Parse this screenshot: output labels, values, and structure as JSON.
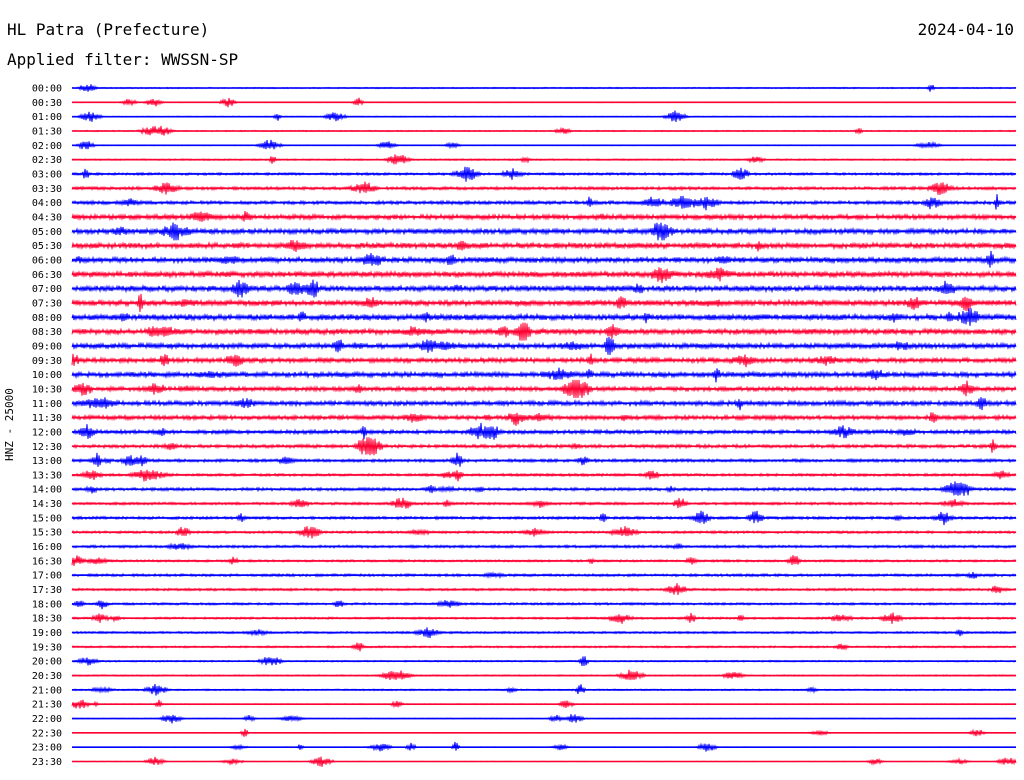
{
  "header": {
    "station": "HL Patra (Prefecture)",
    "date": "2024-04-10",
    "filter": "Applied filter: WWSSN-SP"
  },
  "chart_data": {
    "type": "line",
    "title": "HL Patra (Prefecture)",
    "ylabel": "HNZ - 25000",
    "xlabel": "",
    "colors": {
      "odd_rows": "#0000ff",
      "even_rows": "#ff0033"
    },
    "row_labels": [
      "00:00",
      "00:30",
      "01:00",
      "01:30",
      "02:00",
      "02:30",
      "03:00",
      "03:30",
      "04:00",
      "04:30",
      "05:00",
      "05:30",
      "06:00",
      "06:30",
      "07:00",
      "07:30",
      "08:00",
      "08:30",
      "09:00",
      "09:30",
      "10:00",
      "10:30",
      "11:00",
      "11:30",
      "12:00",
      "12:30",
      "13:00",
      "13:30",
      "14:00",
      "14:30",
      "15:00",
      "15:30",
      "16:00",
      "16:30",
      "17:00",
      "17:30",
      "18:00",
      "18:30",
      "19:00",
      "19:30",
      "20:00",
      "20:30",
      "21:00",
      "21:30",
      "22:00",
      "22:30",
      "23:00",
      "23:30"
    ],
    "relative_activity": [
      0.15,
      0.08,
      0.12,
      0.15,
      0.1,
      0.18,
      0.28,
      0.35,
      0.4,
      0.55,
      0.6,
      0.65,
      0.65,
      0.65,
      0.7,
      0.65,
      0.7,
      0.65,
      0.6,
      0.55,
      0.6,
      0.5,
      0.55,
      0.5,
      0.45,
      0.4,
      0.35,
      0.3,
      0.35,
      0.3,
      0.32,
      0.28,
      0.3,
      0.25,
      0.3,
      0.28,
      0.26,
      0.24,
      0.24,
      0.22,
      0.18,
      0.16,
      0.18,
      0.12,
      0.1,
      0.08,
      0.08,
      0.06
    ]
  }
}
